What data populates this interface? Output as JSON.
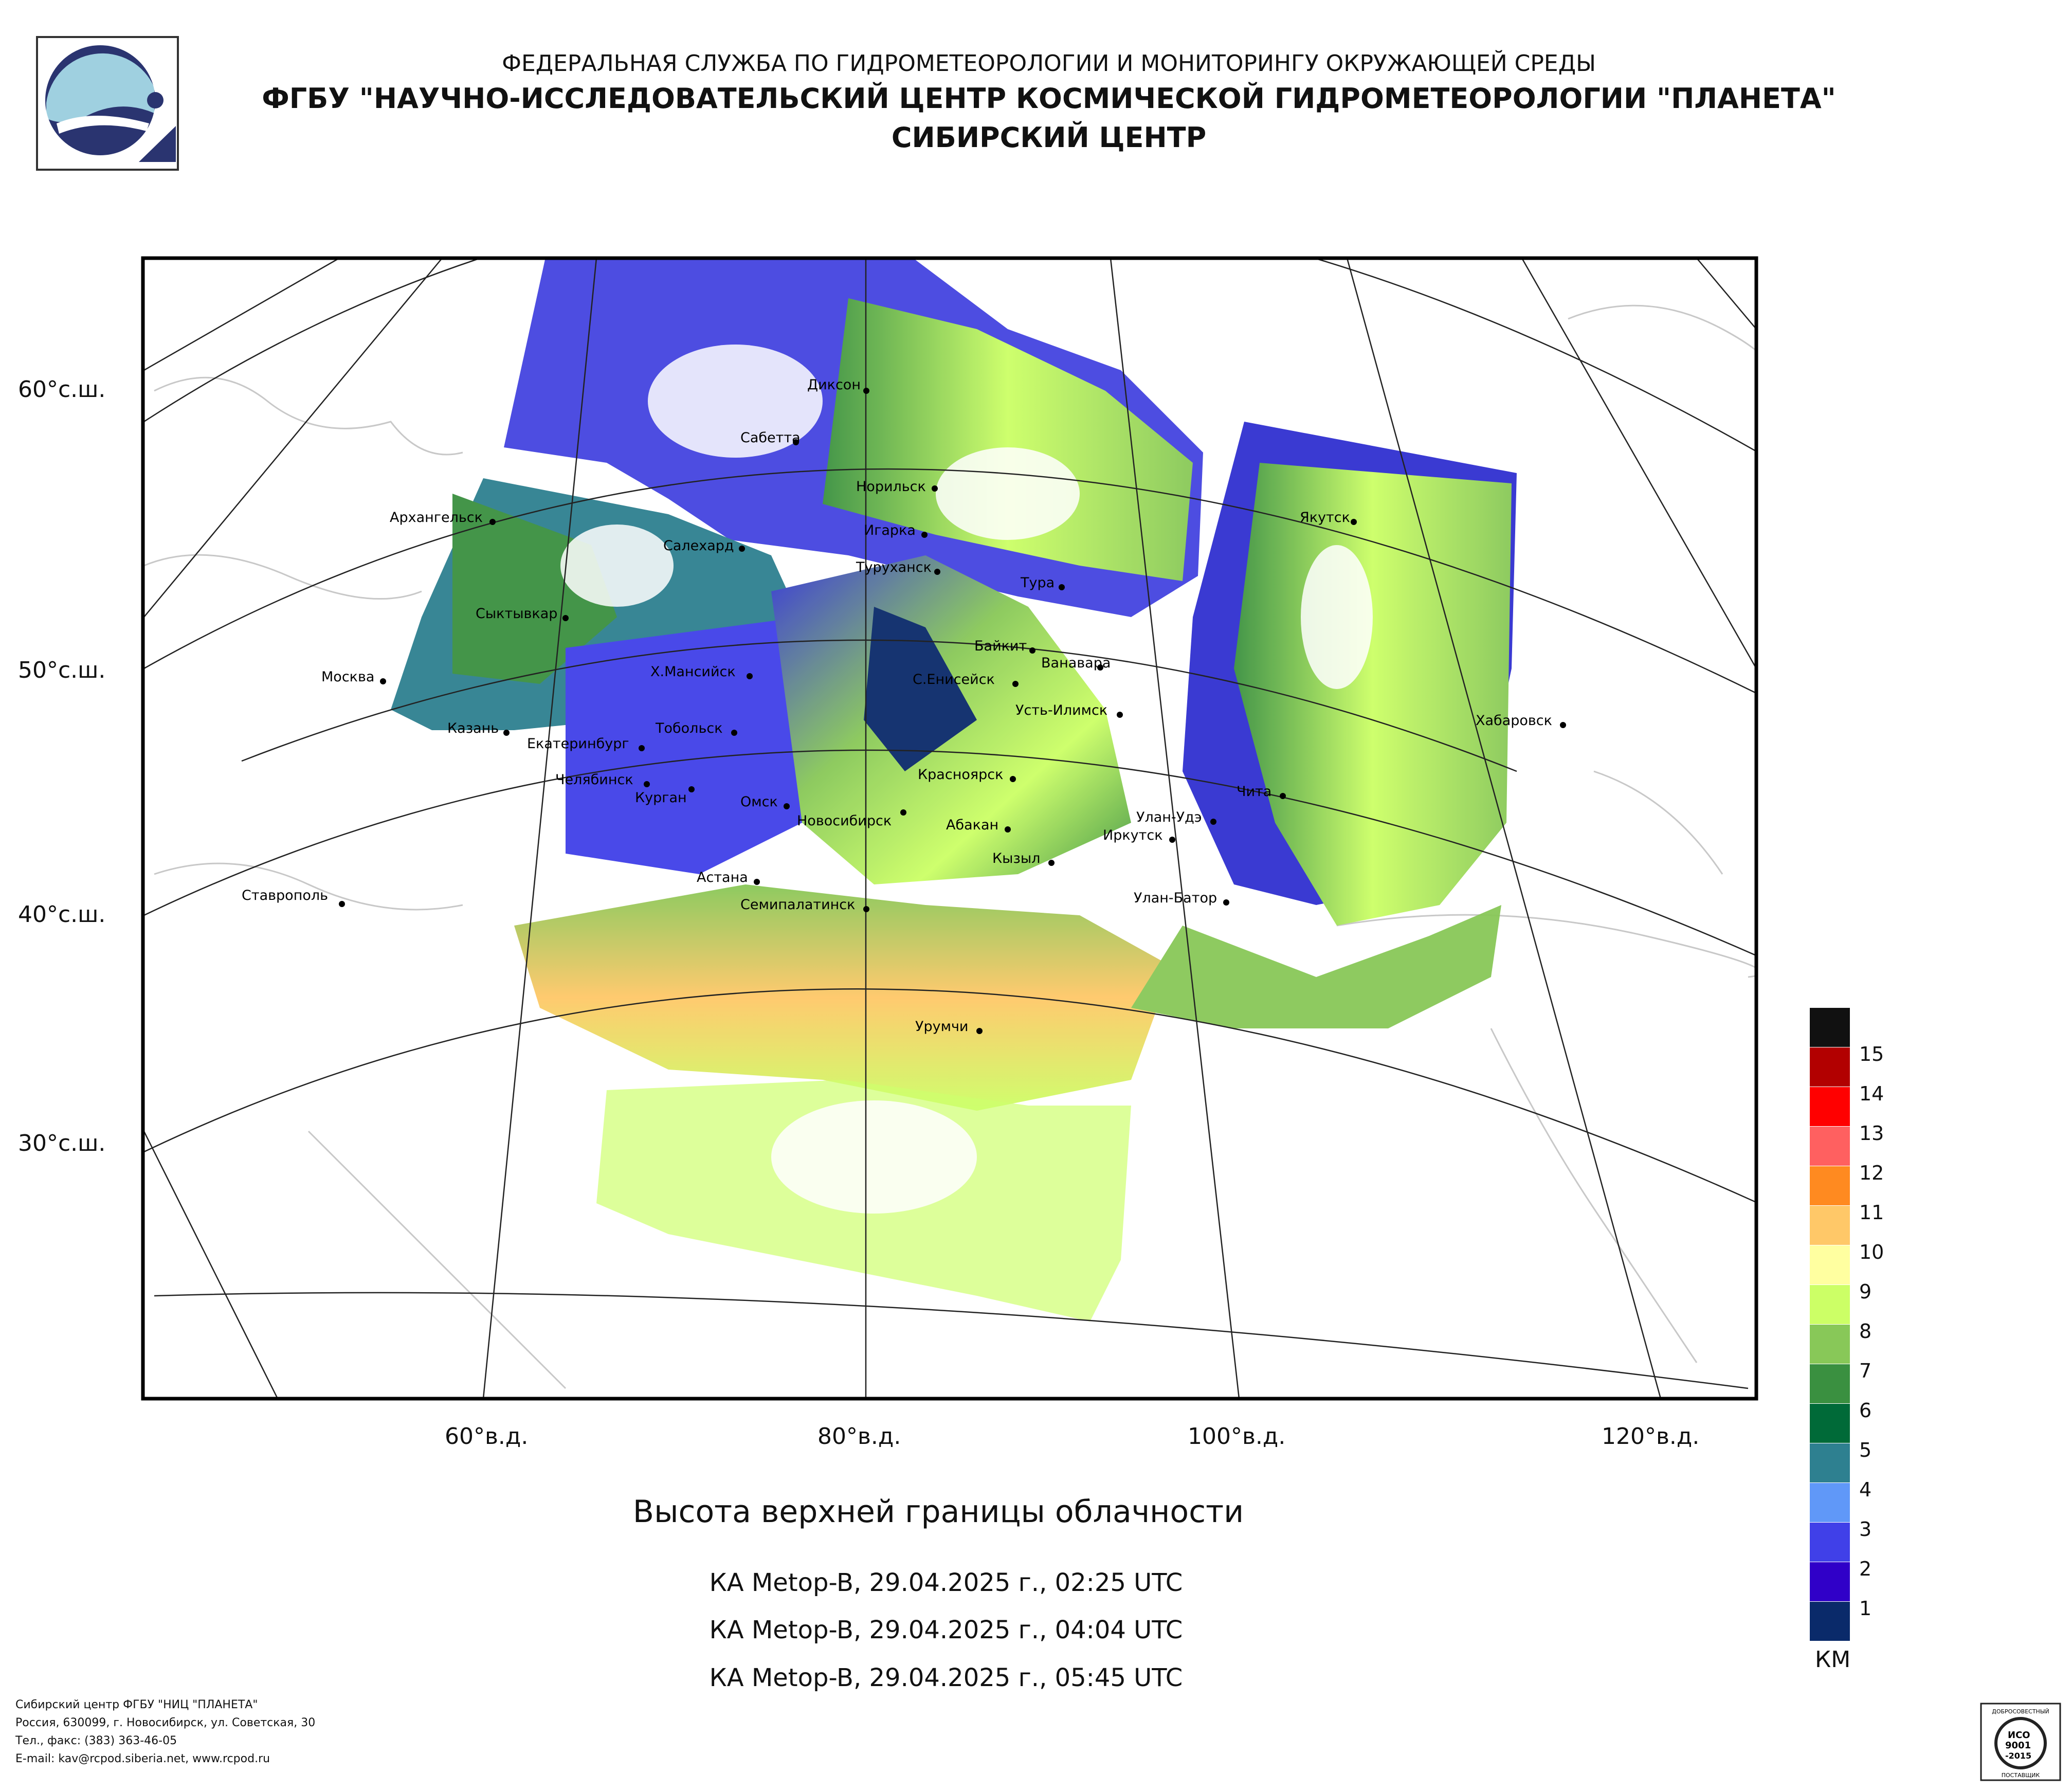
{
  "header": {
    "line1": "ФЕДЕРАЛЬНАЯ СЛУЖБА ПО ГИДРОМЕТЕОРОЛОГИИ И МОНИТОРИНГУ ОКРУЖАЮЩЕЙ СРЕДЫ",
    "line2": "ФГБУ \"НАУЧНО-ИССЛЕДОВАТЕЛЬСКИЙ ЦЕНТР КОСМИЧЕСКОЙ ГИДРОМЕТЕОРОЛОГИИ \"ПЛАНЕТА\"",
    "line3": "СИБИРСКИЙ ЦЕНТР"
  },
  "axes": {
    "lat_labels": [
      "60°с.ш.",
      "50°с.ш.",
      "40°с.ш.",
      "30°с.ш."
    ],
    "lon_labels": [
      "60°в.д.",
      "80°в.д.",
      "100°в.д.",
      "120°в.д."
    ]
  },
  "cities": [
    {
      "name": "Диксон"
    },
    {
      "name": "Сабетта"
    },
    {
      "name": "Норильск"
    },
    {
      "name": "Игарка"
    },
    {
      "name": "Архангельск"
    },
    {
      "name": "Салехард"
    },
    {
      "name": "Туруханск"
    },
    {
      "name": "Тура"
    },
    {
      "name": "Сыктывкар"
    },
    {
      "name": "Якутск"
    },
    {
      "name": "Байкит"
    },
    {
      "name": "Ванавара"
    },
    {
      "name": "Москва"
    },
    {
      "name": "Х.Мансийск"
    },
    {
      "name": "С.Енисейск"
    },
    {
      "name": "Усть-Илимск"
    },
    {
      "name": "Казань"
    },
    {
      "name": "Тобольск"
    },
    {
      "name": "Хабаровск"
    },
    {
      "name": "Екатеринбург"
    },
    {
      "name": "Челябинск"
    },
    {
      "name": "Красноярск"
    },
    {
      "name": "Курган"
    },
    {
      "name": "Омск"
    },
    {
      "name": "Чита"
    },
    {
      "name": "Новосибирск"
    },
    {
      "name": "Абакан"
    },
    {
      "name": "Улан-Удэ"
    },
    {
      "name": "Иркутск"
    },
    {
      "name": "Кызыл"
    },
    {
      "name": "Астана"
    },
    {
      "name": "Ставрополь"
    },
    {
      "name": "Семипалатинск"
    },
    {
      "name": "Улан-Батор"
    },
    {
      "name": "Урумчи"
    }
  ],
  "map_title": "Высота верхней границы облачности",
  "passes": [
    "КА Metop-B, 29.04.2025 г., 02:25 UTC",
    "КА Metop-B, 29.04.2025 г., 04:04 UTC",
    "КА Metop-B, 29.04.2025 г., 05:45 UTC"
  ],
  "legend": {
    "unit": "КМ",
    "items": [
      {
        "label": "15",
        "color": "#111111"
      },
      {
        "label": "14",
        "color": "#b20000"
      },
      {
        "label": "13",
        "color": "#ff0000"
      },
      {
        "label": "12",
        "color": "#ff6060"
      },
      {
        "label": "11",
        "color": "#ff8a20"
      },
      {
        "label": "10",
        "color": "#ffc868"
      },
      {
        "label": "9",
        "color": "#ffffa0"
      },
      {
        "label": "8",
        "color": "#ccff66"
      },
      {
        "label": "7",
        "color": "#88c858"
      },
      {
        "label": "6",
        "color": "#3a9040"
      },
      {
        "label": "5",
        "color": "#006a38"
      },
      {
        "label": "4",
        "color": "#2e8090"
      },
      {
        "label": "3",
        "color": "#6098f8"
      },
      {
        "label": "2",
        "color": "#4040e8"
      },
      {
        "label": "1",
        "color": "#3000c8"
      },
      {
        "label": "",
        "color": "#0a2a6a"
      }
    ]
  },
  "footer": {
    "line1": "Сибирский центр ФГБУ \"НИЦ \"ПЛАНЕТА\"",
    "line2": "Россия, 630099, г. Новосибирск, ул. Советская, 30",
    "line3": "Тел., факс: (383) 363-46-05",
    "line4": "E-mail: kav@rcpod.siberia.net, www.rcpod.ru"
  },
  "iso_badge": {
    "text_top": "ДОБРОСОВЕСТНЫЙ",
    "line1": "ИСО",
    "line2": "9001",
    "line3": "-2015",
    "text_bottom": "ПОСТАВЩИК"
  }
}
